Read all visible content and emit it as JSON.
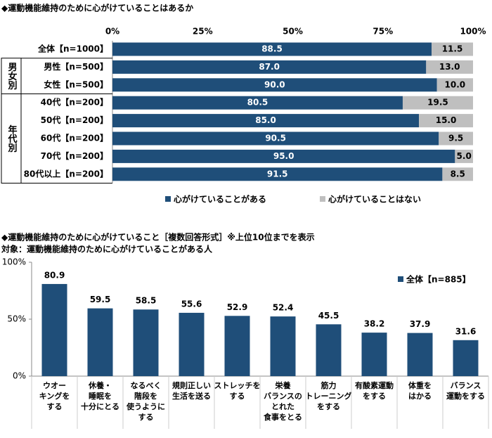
{
  "chart_data": [
    {
      "type": "hbar_stacked",
      "title": "◆運動機能維持のために心がけていることはあるか",
      "categories": [
        "全体【n=1000】",
        "男性【n=500】",
        "女性【n=500】",
        "40代【n=200】",
        "50代【n=200】",
        "60代【n=200】",
        "70代【n=200】",
        "80代以上【n=200】"
      ],
      "groups": [
        null,
        "男女別",
        "男女別",
        "年代別",
        "年代別",
        "年代別",
        "年代別",
        "年代別"
      ],
      "series": [
        {
          "name": "心がけていることがある",
          "color": "#1f4e79",
          "values": [
            88.5,
            87.0,
            90.0,
            80.5,
            85.0,
            90.5,
            95.0,
            91.5
          ],
          "value_labels": [
            "88.5",
            "87.0",
            "90.0",
            "80.5",
            "85.0",
            "90.5",
            "95.0",
            "91.5"
          ]
        },
        {
          "name": "心がけていることはない",
          "color": "#bfbfbf",
          "values": [
            11.5,
            13.0,
            10.0,
            19.5,
            15.0,
            9.5,
            5.0,
            8.5
          ],
          "value_labels": [
            "11.5",
            "13.0",
            "10.0",
            "19.5",
            "15.0",
            "9.5",
            "5.0",
            "8.5"
          ]
        }
      ],
      "xlim": [
        0,
        100
      ],
      "xticks": [
        {
          "value": 0,
          "label": "0%"
        },
        {
          "value": 25,
          "label": "25%"
        },
        {
          "value": 50,
          "label": "50%"
        },
        {
          "value": 75,
          "label": "75%"
        },
        {
          "value": 100,
          "label": "100%"
        }
      ]
    },
    {
      "type": "bar",
      "title": "◆運動機能維持のために心がけていること［複数回答形式］※上位10位までを表示",
      "subtitle": "対象：運動機能維持のために心がけていることがある人",
      "categories": [
        "ウオー\nキングを\nする",
        "休養・\n睡眠を\n十分にとる",
        "なるべく\n階段を\n使うように\nする",
        "規則正しい\n生活を送る",
        "ストレッチを\nする",
        "栄養\nバランスの\nとれた\n食事をとる",
        "筋力\nトレーニング\nをする",
        "有酸素運動\nをする",
        "体重を\nはかる",
        "バランス\n運動をする"
      ],
      "series": [
        {
          "name": "全体【n=885】",
          "color": "#1f4e79",
          "values": [
            80.9,
            59.5,
            58.5,
            55.6,
            52.9,
            52.4,
            45.5,
            38.2,
            37.9,
            31.6
          ]
        }
      ],
      "ylim": [
        0,
        100
      ],
      "yticks": [
        {
          "value": 0,
          "label": "0%"
        },
        {
          "value": 50,
          "label": "50%"
        },
        {
          "value": 100,
          "label": "100%"
        }
      ]
    }
  ]
}
